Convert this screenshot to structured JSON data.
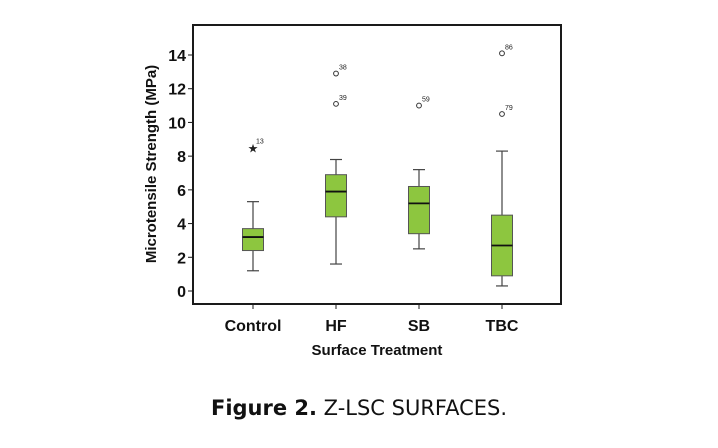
{
  "chart_data": {
    "type": "box",
    "title": "",
    "xlabel": "Surface Treatment",
    "ylabel": "Microtensile Strength (MPa)",
    "ylim": [
      -0.7,
      15.9
    ],
    "yticks": [
      0,
      2,
      4,
      6,
      8,
      10,
      12,
      14
    ],
    "grid": false,
    "box_color": "#8DC63F",
    "categories": [
      "Control",
      "HF",
      "SB",
      "TBC"
    ],
    "boxes": [
      {
        "name": "Control",
        "whisker_low": 1.2,
        "q1": 2.4,
        "median": 3.2,
        "q3": 3.7,
        "whisker_high": 5.3,
        "outliers": [
          {
            "value": 8.5,
            "label": "13",
            "marker": "star"
          }
        ]
      },
      {
        "name": "HF",
        "whisker_low": 1.6,
        "q1": 4.4,
        "median": 5.9,
        "q3": 6.9,
        "whisker_high": 7.8,
        "outliers": [
          {
            "value": 12.9,
            "label": "38",
            "marker": "circle"
          },
          {
            "value": 11.1,
            "label": "39",
            "marker": "circle"
          }
        ]
      },
      {
        "name": "SB",
        "whisker_low": 2.5,
        "q1": 3.4,
        "median": 5.2,
        "q3": 6.2,
        "whisker_high": 7.2,
        "outliers": [
          {
            "value": 11.0,
            "label": "59",
            "marker": "circle"
          }
        ]
      },
      {
        "name": "TBC",
        "whisker_low": 0.3,
        "q1": 0.9,
        "median": 2.7,
        "q3": 4.5,
        "whisker_high": 8.3,
        "outliers": [
          {
            "value": 14.1,
            "label": "86",
            "marker": "circle"
          },
          {
            "value": 10.5,
            "label": "79",
            "marker": "circle"
          }
        ]
      }
    ]
  },
  "caption": {
    "label": "Figure 2.",
    "text": " Z-LSC SURFACES."
  }
}
